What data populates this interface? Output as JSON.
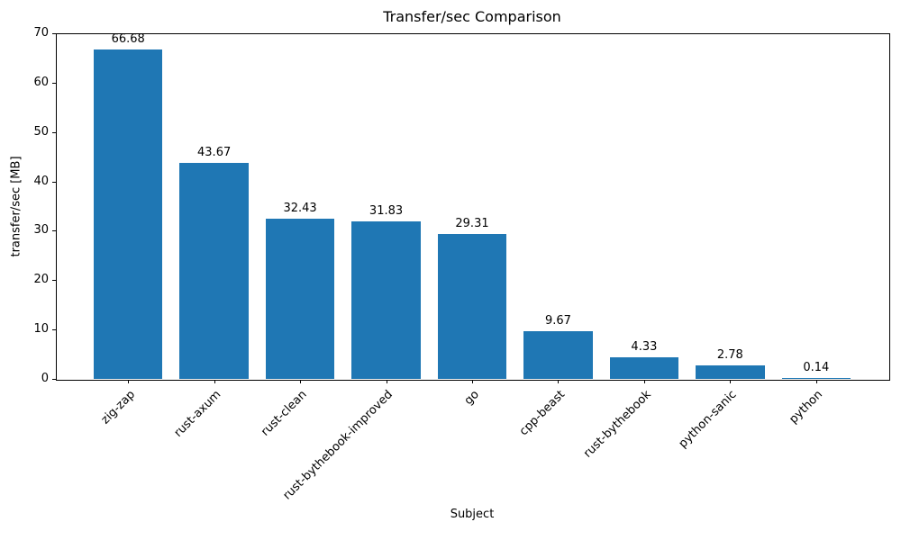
{
  "chart_data": {
    "type": "bar",
    "title": "Transfer/sec Comparison",
    "xlabel": "Subject",
    "ylabel": "transfer/sec [MB]",
    "categories": [
      "zig-zap",
      "rust-axum",
      "rust-clean",
      "rust-bythebook-improved",
      "go",
      "cpp-beast",
      "rust-bythebook",
      "python-sanic",
      "python"
    ],
    "values": [
      66.68,
      43.67,
      32.43,
      31.83,
      29.31,
      9.67,
      4.33,
      2.78,
      0.14
    ],
    "bar_labels": [
      "66.68",
      "43.67",
      "32.43",
      "31.83",
      "29.31",
      "9.67",
      "4.33",
      "2.78",
      "0.14"
    ],
    "ylim": [
      0,
      70
    ],
    "yticks": [
      0,
      10,
      20,
      30,
      40,
      50,
      60,
      70
    ],
    "bar_color": "#1f77b4",
    "bar_width_fraction": 0.8,
    "legend": "none",
    "grid": false
  }
}
